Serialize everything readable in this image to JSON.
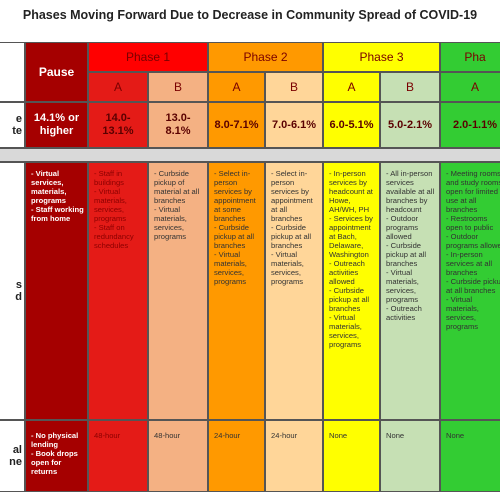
{
  "header": {
    "title": "Phases Moving Forward Due to Decrease in Community Spread of COVID-19"
  },
  "row_labels": {
    "rate": [
      "e",
      "te"
    ],
    "services": [
      "s",
      "d"
    ],
    "hold": [
      "al",
      "ne"
    ]
  },
  "phases": [
    {
      "label": "Pause"
    },
    {
      "label": "Phase 1"
    },
    {
      "label": "Phase 2"
    },
    {
      "label": "Phase 3"
    },
    {
      "label": "Pha"
    }
  ],
  "columns": [
    {
      "rate": "14.1% or higher",
      "services": [
        "- Virtual services, materials, programs",
        "- Staff working from home"
      ],
      "hold": [
        "- No physical lending",
        "- Book drops open for returns"
      ]
    },
    {
      "sub": "A",
      "rate": "14.0-13.1%",
      "services": [
        "- Staff in buildings",
        "- Virtual materials, services, programs",
        "- Staff on redundancy schedules"
      ],
      "hold": [
        "48-hour"
      ]
    },
    {
      "sub": "B",
      "rate": "13.0-8.1%",
      "services": [
        "- Curbside pickup of material at all branches",
        "- Virtual materials, services, programs"
      ],
      "hold": [
        "48-hour"
      ]
    },
    {
      "sub": "A",
      "rate": "8.0-7.1%",
      "services": [
        "- Select in-person services by appointment at some branches",
        "- Curbside pickup at all branches",
        "- Virtual materials, services, programs"
      ],
      "hold": [
        "24-hour"
      ]
    },
    {
      "sub": "B",
      "rate": "7.0-6.1%",
      "services": [
        "- Select in-person services by appointment at all branches",
        "- Curbside pickup at all branches",
        "- Virtual materials, services, programs"
      ],
      "hold": [
        "24-hour"
      ]
    },
    {
      "sub": "A",
      "rate": "6.0-5.1%",
      "services": [
        "- In-person services by headcount at Howe, AH/WH, PH",
        "- Services by appointment at Bach, Delaware, Washington",
        "- Outreach activities allowed",
        "- Curbside pickup at all branches",
        "- Virtual materials, services, programs"
      ],
      "hold": [
        "None"
      ]
    },
    {
      "sub": "B",
      "rate": "5.0-2.1%",
      "services": [
        "- All in-person services available at all branches by headcount",
        "- Outdoor programs allowed",
        "- Curbside pickup at all branches",
        "- Virtual materials, services, programs",
        "- Outreach activities"
      ],
      "hold": [
        "None"
      ]
    },
    {
      "sub": "A",
      "rate": "2.0-1.1%",
      "services": [
        "- Meeting rooms and study rooms open for limited use at all branches",
        "- Restrooms open to public",
        "- Outdoor programs allowed",
        "- In-person services at all branches",
        "- Curbside pickup at all branches",
        "- Virtual materials, services, programs"
      ],
      "hold": [
        "None"
      ]
    }
  ]
}
